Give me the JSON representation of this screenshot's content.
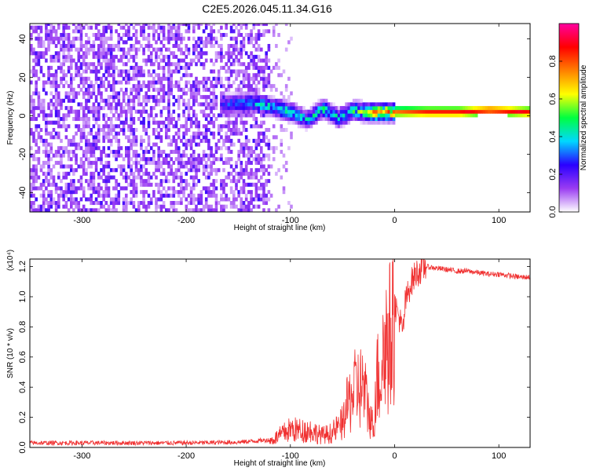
{
  "title": "C2E5.2026.045.11.34.G16",
  "chart_data": [
    {
      "type": "heatmap",
      "xlabel": "Height of straight line (km)",
      "ylabel": "Frequency (Hz)",
      "xlim": [
        -350,
        130
      ],
      "ylim": [
        -50,
        48
      ],
      "xticks": [
        -300,
        -200,
        -100,
        0,
        100
      ],
      "yticks": [
        -40,
        -20,
        0,
        20,
        40
      ],
      "colorbar": {
        "label": "Normalized spectral amplitude",
        "range": [
          0,
          1
        ],
        "ticks": [
          0.0,
          0.2,
          0.4,
          0.6,
          0.8
        ],
        "tick_labels": [
          "0.0",
          "0.2",
          "0.4",
          "0.6",
          "0.8"
        ],
        "colors": [
          "#ffffff",
          "#9a3cf2",
          "#2a00ff",
          "#00d8ff",
          "#00ff40",
          "#ffff00",
          "#ff8000",
          "#ff0000",
          "#ff00a0"
        ]
      },
      "noise_region_x": [
        -350,
        -120
      ],
      "ridge": [
        {
          "x": -170,
          "y": 5,
          "v": 0.3
        },
        {
          "x": -140,
          "y": 6,
          "v": 0.4
        },
        {
          "x": -120,
          "y": 4,
          "v": 0.45
        },
        {
          "x": -100,
          "y": 1,
          "v": 0.45
        },
        {
          "x": -85,
          "y": -3,
          "v": 0.4
        },
        {
          "x": -70,
          "y": 3,
          "v": 0.5
        },
        {
          "x": -55,
          "y": -2,
          "v": 0.45
        },
        {
          "x": -40,
          "y": 2,
          "v": 0.5
        },
        {
          "x": -30,
          "y": 1,
          "v": 0.55
        },
        {
          "x": -20,
          "y": 1,
          "v": 0.8
        },
        {
          "x": 0,
          "y": 1,
          "v": 0.8
        },
        {
          "x": 30,
          "y": 1,
          "v": 0.9
        },
        {
          "x": 60,
          "y": 1,
          "v": 0.9
        },
        {
          "x": 90,
          "y": 2,
          "v": 0.9
        },
        {
          "x": 130,
          "y": 1,
          "v": 0.9
        }
      ]
    },
    {
      "type": "line",
      "xlabel": "Height of straight line (km)",
      "ylabel": "SNR (10 * v/v)",
      "y_scale_note": "(x10⁴)",
      "xlim": [
        -350,
        130
      ],
      "ylim": [
        0,
        1.25
      ],
      "xticks": [
        -300,
        -200,
        -100,
        0,
        100
      ],
      "yticks": [
        0.0,
        0.2,
        0.4,
        0.6,
        0.8,
        1.0,
        1.2
      ],
      "ytick_labels": [
        "0.0",
        "0.2",
        "0.4",
        "0.6",
        "0.8",
        "1.0",
        "1.2"
      ],
      "line_color": "#f03030",
      "series": [
        {
          "x": [
            -350,
            -300,
            -250,
            -200,
            -150,
            -120,
            -110,
            -100,
            -90,
            -80,
            -70,
            -60,
            -50,
            -45,
            -40,
            -35,
            -30,
            -25,
            -20,
            -18,
            -15,
            -12,
            -10,
            -5,
            0,
            5,
            8,
            10,
            15,
            20,
            25,
            30,
            40,
            50,
            60,
            70,
            80,
            90,
            100,
            110,
            120,
            130
          ],
          "values": [
            0.03,
            0.03,
            0.03,
            0.03,
            0.035,
            0.05,
            0.1,
            0.15,
            0.14,
            0.14,
            0.1,
            0.12,
            0.2,
            0.35,
            0.45,
            0.5,
            0.5,
            0.3,
            0.15,
            0.6,
            0.55,
            0.72,
            0.85,
            0.9,
            0.95,
            0.85,
            0.75,
            0.95,
            1.08,
            1.15,
            1.18,
            1.2,
            1.19,
            1.18,
            1.17,
            1.17,
            1.16,
            1.15,
            1.15,
            1.14,
            1.13,
            1.13
          ]
        }
      ]
    }
  ]
}
